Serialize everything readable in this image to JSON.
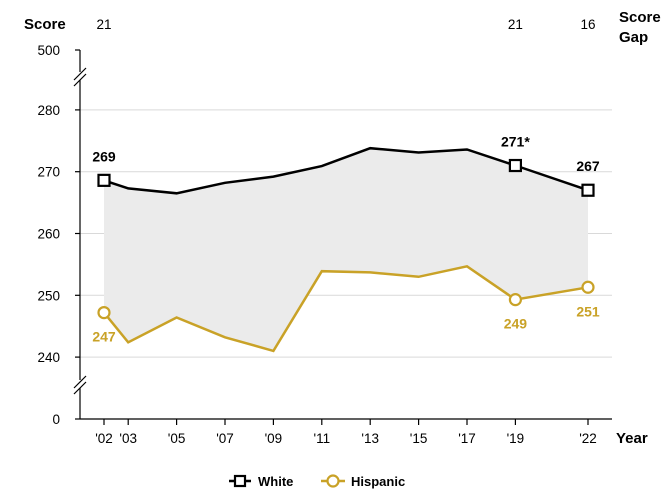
{
  "chart_data": {
    "type": "line",
    "y_header": "Score",
    "gap_header": "Score Gap",
    "x_header": "Year",
    "x": [
      2002,
      2003,
      2005,
      2007,
      2009,
      2011,
      2013,
      2015,
      2017,
      2019,
      2022
    ],
    "x_tick_labels": [
      "'02",
      "'03",
      "'05",
      "'07",
      "'09",
      "'11",
      "'13",
      "'15",
      "'17",
      "'19",
      "'22"
    ],
    "y_ticks": [
      0,
      240,
      250,
      260,
      270,
      280,
      500
    ],
    "y_range": [
      235,
      285
    ],
    "axis_break": true,
    "score_gap": [
      {
        "year": 2002,
        "value": "21"
      },
      {
        "year": 2019,
        "value": "21"
      },
      {
        "year": 2022,
        "value": "16"
      }
    ],
    "series": [
      {
        "name": "White",
        "color": "#000000",
        "marker": "square",
        "values": [
          268.6,
          267.3,
          266.5,
          268.2,
          269.2,
          270.9,
          273.8,
          273.1,
          273.6,
          271.0,
          267.0
        ],
        "data_labels": [
          {
            "year": 2002,
            "text": "269"
          },
          {
            "year": 2019,
            "text": "271*"
          },
          {
            "year": 2022,
            "text": "267"
          }
        ]
      },
      {
        "name": "Hispanic",
        "color": "#C9A227",
        "marker": "circle",
        "values": [
          247.2,
          242.4,
          246.4,
          243.2,
          241.0,
          253.9,
          253.7,
          253.0,
          254.7,
          249.3,
          251.3
        ],
        "data_labels": [
          {
            "year": 2002,
            "text": "247"
          },
          {
            "year": 2019,
            "text": "249"
          },
          {
            "year": 2022,
            "text": "251"
          }
        ]
      }
    ],
    "shaded_gap": true,
    "gap_fill_color": "#EBEBEB",
    "legend": [
      "White",
      "Hispanic"
    ],
    "legend_position": "bottom-center",
    "grid": "horizontal"
  }
}
